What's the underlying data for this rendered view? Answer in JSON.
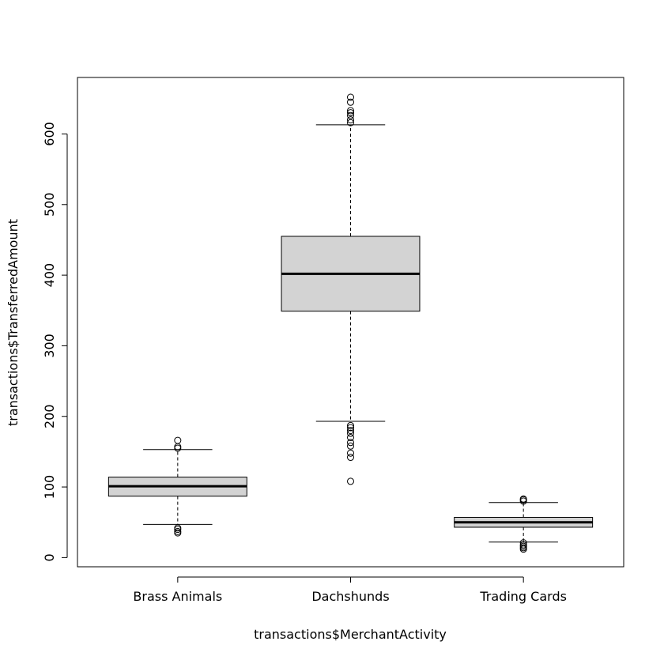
{
  "chart_data": {
    "type": "boxplot",
    "title": "",
    "xlabel": "transactions$MerchantActivity",
    "ylabel": "transactions$TransferredAmount",
    "categories": [
      "Brass Animals",
      "Dachshunds",
      "Trading Cards"
    ],
    "ylim": [
      -13,
      680
    ],
    "yticks": [
      0,
      100,
      200,
      300,
      400,
      500,
      600
    ],
    "grid": false,
    "boxes": [
      {
        "name": "Brass Animals",
        "whisker_low": 47,
        "q1": 87,
        "median": 101,
        "q3": 114,
        "whisker_high": 153,
        "outliers": [
          35,
          37,
          40,
          42,
          155,
          157,
          166
        ]
      },
      {
        "name": "Dachshunds",
        "whisker_low": 193,
        "q1": 349,
        "median": 402,
        "q3": 455,
        "whisker_high": 613,
        "outliers": [
          108,
          142,
          148,
          158,
          163,
          170,
          176,
          180,
          184,
          187,
          616,
          620,
          626,
          630,
          633,
          645,
          652
        ]
      },
      {
        "name": "Trading Cards",
        "whisker_low": 22,
        "q1": 43,
        "median": 50,
        "q3": 57,
        "whisker_high": 78,
        "outliers": [
          12,
          14,
          16,
          18,
          21,
          80,
          82,
          83
        ]
      }
    ],
    "colors": {
      "box_fill": "#d3d3d3",
      "stroke": "#000000",
      "background": "#ffffff"
    }
  }
}
